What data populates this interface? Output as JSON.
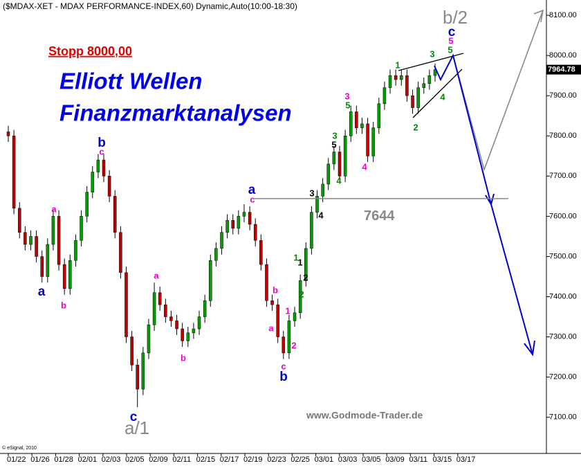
{
  "chart_data": {
    "type": "candlestick",
    "title": "($MDAX-XET - MDAX PERFORMANCE-INDEX,60) Dynamic,Auto(10:00-18:30)",
    "stop_text": "Stopp 8000,00",
    "headline": "Elliott Wellen",
    "subtitle": "Finanzmarktanalysen",
    "watermark": "www.Godmode-Trader.de",
    "copyright": "© eSignal, 2010",
    "wave_b2": "b/2",
    "wave_a1": "a/1",
    "categories": [
      "01/22",
      "01/26",
      "01/28",
      "02/01",
      "02/03",
      "02/05",
      "02/09",
      "02/11",
      "02/15",
      "02/17",
      "02/19",
      "02/23",
      "02/25",
      "03/01",
      "03/03",
      "03/05",
      "03/09",
      "03/11",
      "03/15",
      "03/17"
    ],
    "ylim": [
      7010,
      8138
    ],
    "yticks": [
      {
        "value": 7100,
        "label": "7100.00"
      },
      {
        "value": 7200,
        "label": "7200.00"
      },
      {
        "value": 7300,
        "label": "7300.00"
      },
      {
        "value": 7400,
        "label": "7400.00"
      },
      {
        "value": 7500,
        "label": "7500.00"
      },
      {
        "value": 7600,
        "label": "7600.00"
      },
      {
        "value": 7700,
        "label": "7700.00"
      },
      {
        "value": 7800,
        "label": "7800.00"
      },
      {
        "value": 7900,
        "label": "7900.00"
      },
      {
        "value": 8000,
        "label": "8000.00"
      },
      {
        "value": 8100,
        "label": "8100.00"
      }
    ],
    "up_color": "#00a000",
    "down_color": "#c00000",
    "open": [
      7810,
      7800,
      7620,
      7560,
      7530,
      7550,
      7500,
      7450,
      7530,
      7600,
      7480,
      7420,
      7490,
      7540,
      7600,
      7660,
      7710,
      7740,
      7700,
      7650,
      7560,
      7460,
      7300,
      7230,
      7170,
      7260,
      7330,
      7410,
      7380,
      7350,
      7340,
      7320,
      7290,
      7310,
      7320,
      7350,
      7390,
      7490,
      7520,
      7560,
      7590,
      7570,
      7600,
      7610,
      7580,
      7540,
      7480,
      7390,
      7380,
      7300,
      7260,
      7340,
      7360,
      7440,
      7520,
      7610,
      7650,
      7680,
      7730,
      7760,
      7700,
      7800,
      7860,
      7820,
      7830,
      7750,
      7820,
      7880,
      7920,
      7950,
      7940,
      7950,
      7900,
      7870,
      7920,
      7930,
      7950
    ],
    "high": [
      7825,
      7815,
      7635,
      7575,
      7565,
      7565,
      7515,
      7545,
      7615,
      7615,
      7495,
      7505,
      7555,
      7615,
      7675,
      7725,
      7755,
      7755,
      7715,
      7665,
      7575,
      7475,
      7315,
      7245,
      7275,
      7345,
      7435,
      7425,
      7395,
      7365,
      7355,
      7335,
      7325,
      7335,
      7365,
      7405,
      7505,
      7535,
      7575,
      7605,
      7605,
      7615,
      7630,
      7625,
      7595,
      7555,
      7495,
      7405,
      7395,
      7315,
      7355,
      7375,
      7455,
      7535,
      7625,
      7665,
      7695,
      7745,
      7775,
      7775,
      7815,
      7875,
      7875,
      7845,
      7845,
      7835,
      7895,
      7935,
      7965,
      7965,
      7965,
      7965,
      7915,
      7935,
      7945,
      7965,
      7980
    ],
    "low": [
      7785,
      7605,
      7545,
      7515,
      7515,
      7485,
      7435,
      7435,
      7515,
      7465,
      7405,
      7405,
      7475,
      7525,
      7585,
      7645,
      7695,
      7685,
      7635,
      7545,
      7445,
      7285,
      7215,
      7125,
      7155,
      7245,
      7315,
      7365,
      7335,
      7325,
      7305,
      7275,
      7275,
      7295,
      7305,
      7335,
      7375,
      7475,
      7505,
      7545,
      7555,
      7555,
      7585,
      7565,
      7525,
      7465,
      7375,
      7365,
      7285,
      7245,
      7245,
      7325,
      7345,
      7425,
      7505,
      7595,
      7635,
      7665,
      7715,
      7685,
      7685,
      7785,
      7805,
      7805,
      7735,
      7735,
      7805,
      7865,
      7905,
      7925,
      7925,
      7885,
      7855,
      7855,
      7905,
      7915,
      7935
    ],
    "close": [
      7800,
      7620,
      7560,
      7530,
      7550,
      7500,
      7450,
      7530,
      7600,
      7480,
      7420,
      7490,
      7540,
      7600,
      7660,
      7710,
      7740,
      7700,
      7650,
      7560,
      7460,
      7300,
      7230,
      7170,
      7260,
      7330,
      7410,
      7380,
      7350,
      7340,
      7320,
      7290,
      7310,
      7320,
      7350,
      7390,
      7490,
      7520,
      7560,
      7590,
      7570,
      7600,
      7610,
      7580,
      7540,
      7480,
      7390,
      7380,
      7300,
      7260,
      7340,
      7360,
      7440,
      7520,
      7610,
      7650,
      7680,
      7730,
      7760,
      7700,
      7800,
      7860,
      7820,
      7830,
      7750,
      7820,
      7880,
      7920,
      7950,
      7940,
      7950,
      7900,
      7870,
      7920,
      7930,
      7950,
      7964.78
    ],
    "last_price": 7964.78,
    "level": 7644,
    "level_color": "#888888",
    "annotations": [
      {
        "text": "a",
        "color": "#0000cc"
      },
      {
        "text": "b",
        "color": "#0000cc"
      },
      {
        "text": "a",
        "color": "#0000cc"
      },
      {
        "text": "b",
        "color": "#0000cc"
      },
      {
        "text": "c",
        "color": "#0000cc"
      },
      {
        "text": "c",
        "color": "#0000cc"
      },
      {
        "text": "a",
        "color": "#ee00cc"
      },
      {
        "text": "b",
        "color": "#ee00cc"
      },
      {
        "text": "c",
        "color": "#ee00cc"
      },
      {
        "text": "a",
        "color": "#ee00cc"
      },
      {
        "text": "b",
        "color": "#ee00cc"
      },
      {
        "text": "c",
        "color": "#ee00cc"
      },
      {
        "text": "b",
        "color": "#ee00cc"
      },
      {
        "text": "a",
        "color": "#ee00cc"
      },
      {
        "text": "1",
        "color": "#ee00cc"
      },
      {
        "text": "2",
        "color": "#ee00cc"
      },
      {
        "text": "c",
        "color": "#ee00cc"
      },
      {
        "text": "3",
        "color": "#ee00cc"
      },
      {
        "text": "4",
        "color": "#ee00cc"
      },
      {
        "text": "5",
        "color": "#ee00cc"
      },
      {
        "text": "1",
        "color": "#008800"
      },
      {
        "text": "2",
        "color": "#008800"
      },
      {
        "text": "3",
        "color": "#008800"
      },
      {
        "text": "4",
        "color": "#008800"
      },
      {
        "text": "5",
        "color": "#008800"
      },
      {
        "text": "1",
        "color": "#008800"
      },
      {
        "text": "2",
        "color": "#008800"
      },
      {
        "text": "3",
        "color": "#008800"
      },
      {
        "text": "4",
        "color": "#008800"
      },
      {
        "text": "5",
        "color": "#008800"
      },
      {
        "text": "1",
        "color": "#000000"
      },
      {
        "text": "2",
        "color": "#000000"
      },
      {
        "text": "3",
        "color": "#000000"
      },
      {
        "text": "4",
        "color": "#000000"
      },
      {
        "text": "5",
        "color": "#000000"
      }
    ]
  }
}
